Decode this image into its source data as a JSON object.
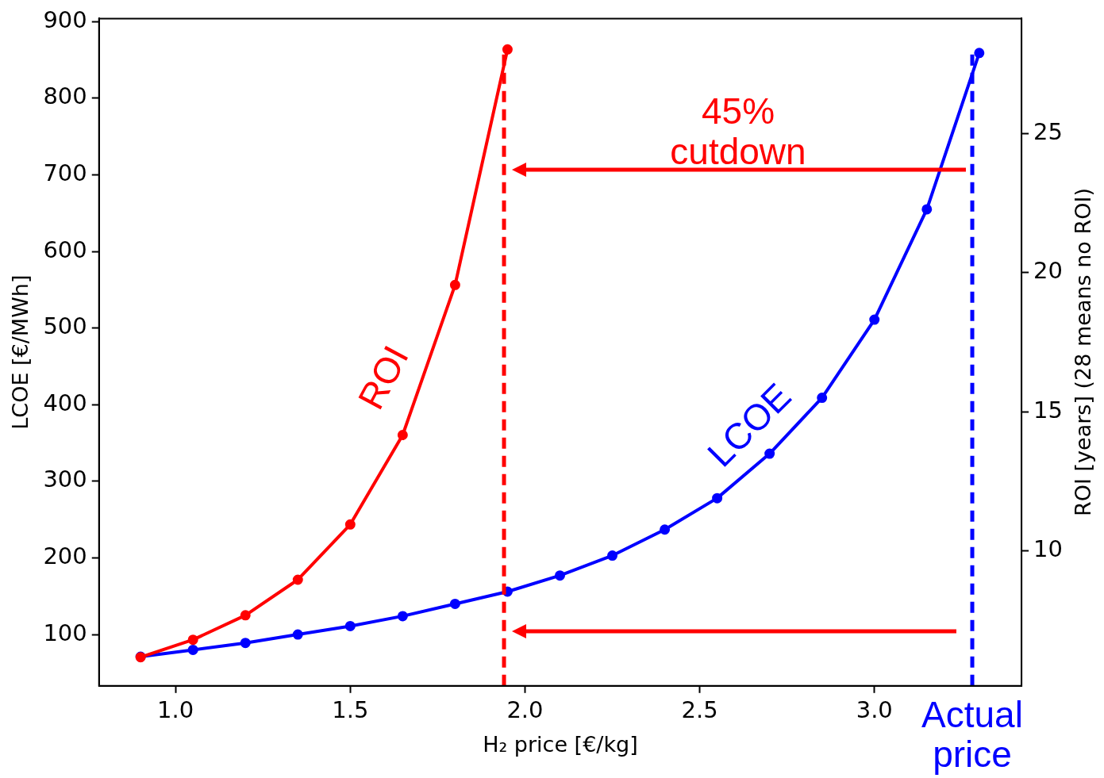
{
  "chart_data": {
    "type": "line",
    "xlabel": "H₂ price [€/kg]",
    "ylabel": "LCOE [€/MWh]",
    "y2label": "ROI [years] (28 means no ROI)",
    "xlim": [
      0.781,
      3.421
    ],
    "xticks": [
      {
        "value": 1,
        "label": "1.0"
      },
      {
        "value": 1.5,
        "label": "1.5"
      },
      {
        "value": 2,
        "label": "2.0"
      },
      {
        "value": 2.5,
        "label": "2.5"
      },
      {
        "value": 3,
        "label": "3.0"
      }
    ],
    "ylim": [
      33,
      904
    ],
    "yticks": [
      100,
      200,
      300,
      400,
      500,
      600,
      700,
      800,
      900
    ],
    "y2lim": [
      5.13,
      29.15
    ],
    "y2ticks": [
      10,
      15,
      20,
      25
    ],
    "series": [
      {
        "color": "#0000ff",
        "x": [
          0.9,
          1.05,
          1.2,
          1.35,
          1.5,
          1.65,
          1.8,
          1.95,
          2.1,
          2.25,
          2.4,
          2.55,
          2.7,
          2.85,
          3.0,
          3.15,
          3.3
        ],
        "values": [
          71,
          80,
          89,
          100,
          111,
          124,
          140,
          156,
          177,
          203,
          237,
          278,
          336,
          409,
          511,
          655,
          859
        ]
      },
      {
        "color": "#ff0000",
        "axis": "y2",
        "x": [
          0.9,
          1.05,
          1.2,
          1.35,
          1.5,
          1.65,
          1.8,
          1.95
        ],
        "values": [
          6.16,
          6.79,
          7.67,
          8.95,
          10.94,
          14.16,
          19.56,
          28.04
        ]
      }
    ],
    "ref_lines": [
      {
        "axis": "x",
        "value": 1.94,
        "color": "#ff0000",
        "line_style": "dashed"
      },
      {
        "axis": "x",
        "value": 3.28,
        "color": "#0000ff",
        "line_style": "dashed"
      }
    ],
    "annotations": [
      "ROI",
      "LCOE",
      "45% cutdown",
      "Actual price"
    ],
    "marker": "circle",
    "line_style": "solid",
    "grid": false,
    "legend": false
  }
}
